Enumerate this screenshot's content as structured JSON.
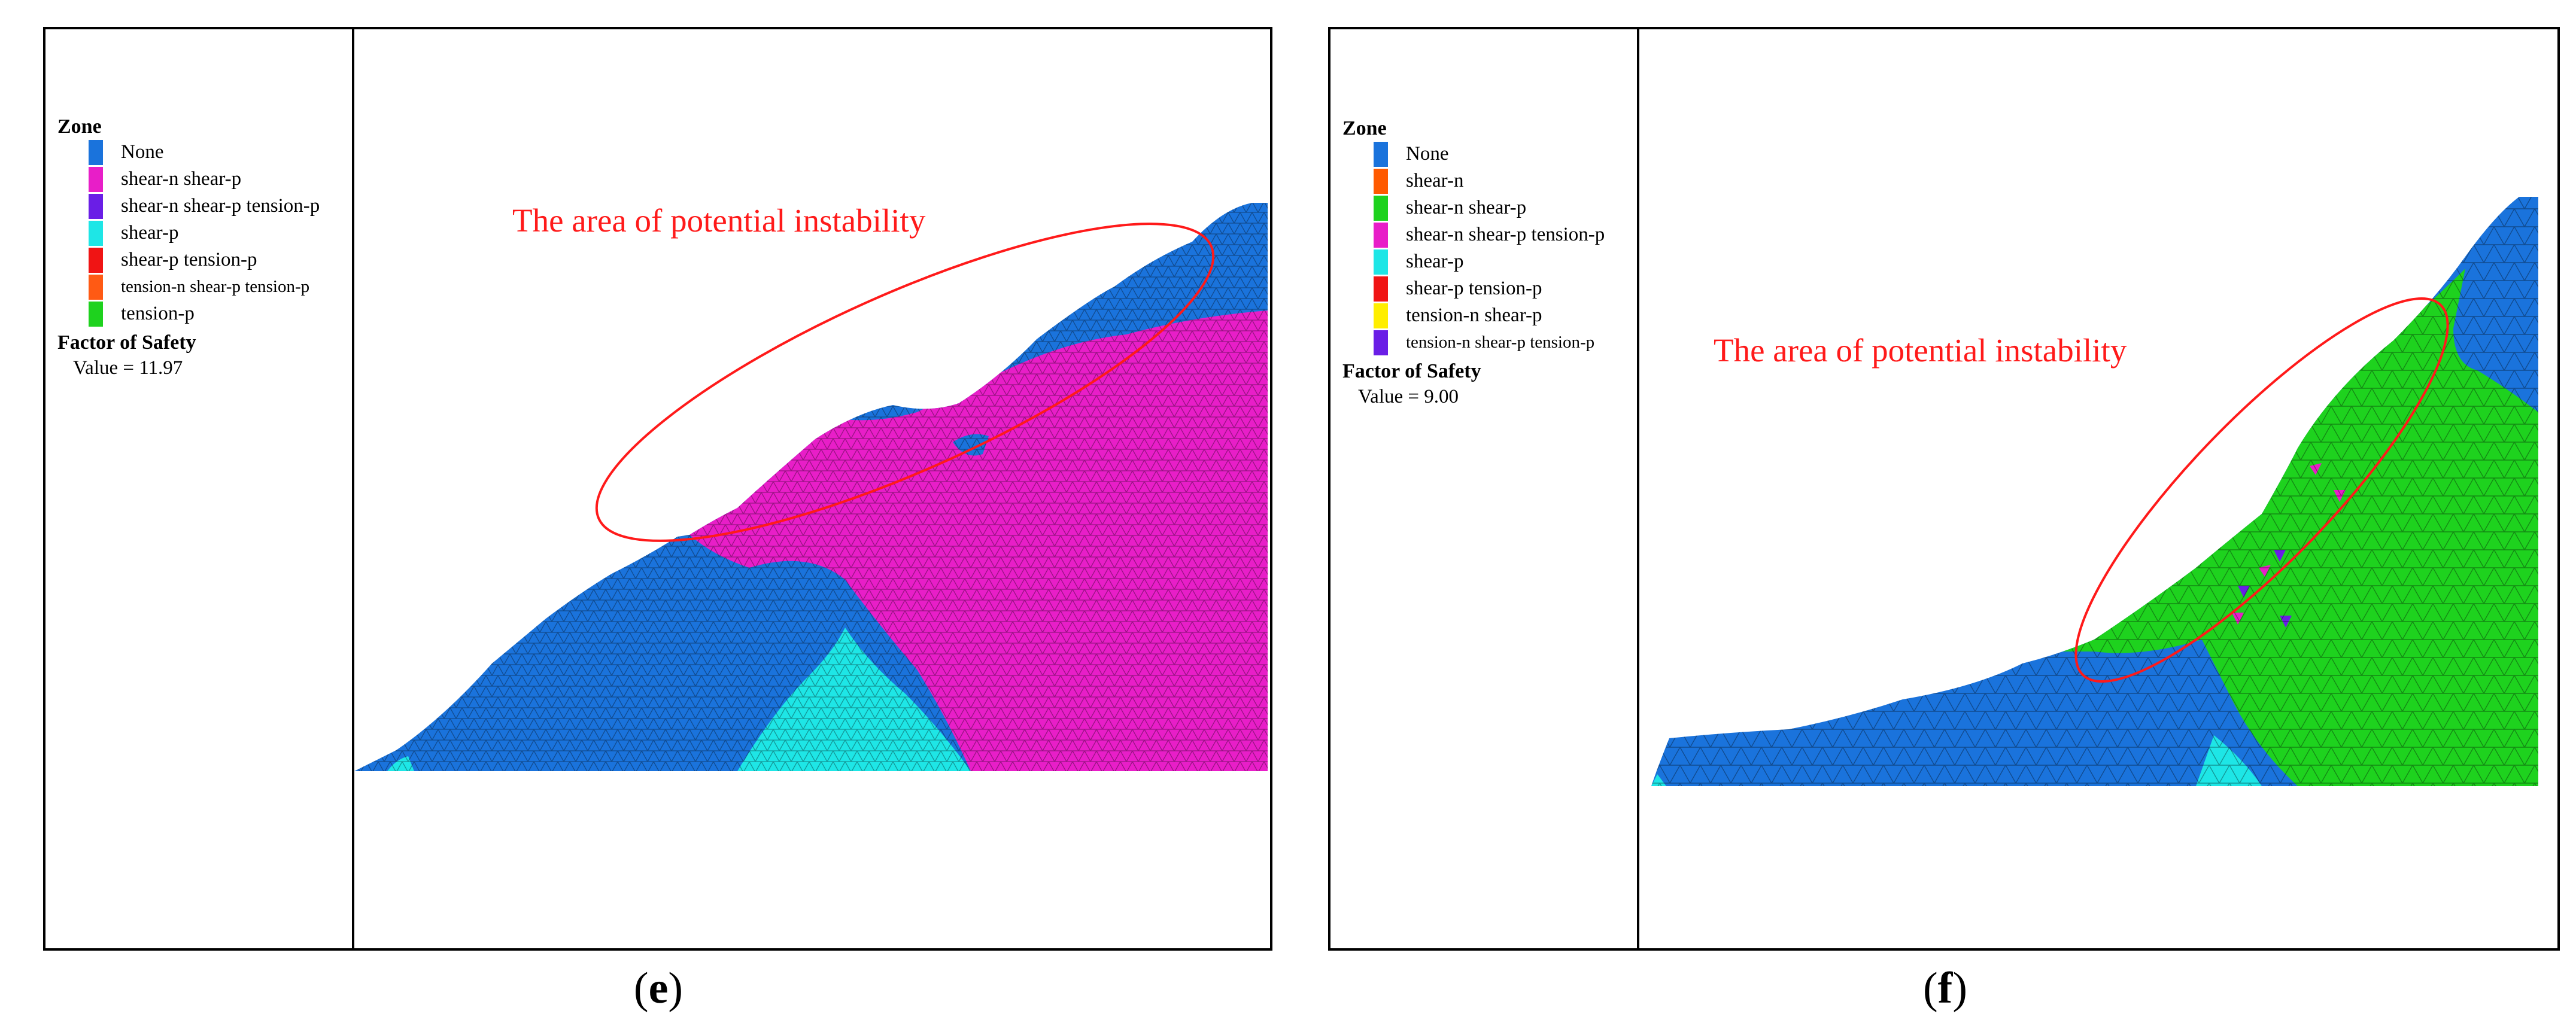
{
  "colors": {
    "none": "#1a73dc",
    "shear_n": "#ff5a00",
    "shear_n_shear_p": "#e81ec8",
    "shear_n_shear_p_tension_p": "#6a1ee6",
    "shear_p": "#1ee6e6",
    "shear_p_tension_p": "#f01414",
    "tension_n_shear_p": "#ffee00",
    "tension_n_shear_p_tension_p": "#ff5a14",
    "tension_p": "#1ed21e",
    "annotation": "#ff1a1a"
  },
  "panel_e": {
    "caption_letter": "e",
    "legend_title": "Zone",
    "zones": [
      {
        "label": "None",
        "color": "#1a73dc"
      },
      {
        "label": "shear-n shear-p",
        "color": "#e81ec8"
      },
      {
        "label": "shear-n shear-p tension-p",
        "color": "#6a1ee6"
      },
      {
        "label": "shear-p",
        "color": "#1ee6e6"
      },
      {
        "label": "shear-p tension-p",
        "color": "#f01414"
      },
      {
        "label": "tension-n shear-p tension-p",
        "color": "#ff5a14",
        "small": true
      },
      {
        "label": "tension-p",
        "color": "#1ed21e"
      }
    ],
    "fos_title": "Factor of Safety",
    "fos_value": "Value = 11.97",
    "annotation": "The area of potential instability"
  },
  "panel_f": {
    "caption_letter": "f",
    "legend_title": "Zone",
    "zones": [
      {
        "label": "None",
        "color": "#1a73dc"
      },
      {
        "label": "shear-n",
        "color": "#ff5a00"
      },
      {
        "label": "shear-n shear-p",
        "color": "#1ed21e"
      },
      {
        "label": "shear-n shear-p tension-p",
        "color": "#e81ec8"
      },
      {
        "label": "shear-p",
        "color": "#1ee6e6"
      },
      {
        "label": "shear-p tension-p",
        "color": "#f01414"
      },
      {
        "label": "tension-n shear-p",
        "color": "#ffee00"
      },
      {
        "label": "tension-n shear-p tension-p",
        "color": "#6a1ee6",
        "small": true
      }
    ],
    "fos_title": "Factor of Safety",
    "fos_value": "Value = 9.00",
    "annotation": "The area of potential instability"
  }
}
